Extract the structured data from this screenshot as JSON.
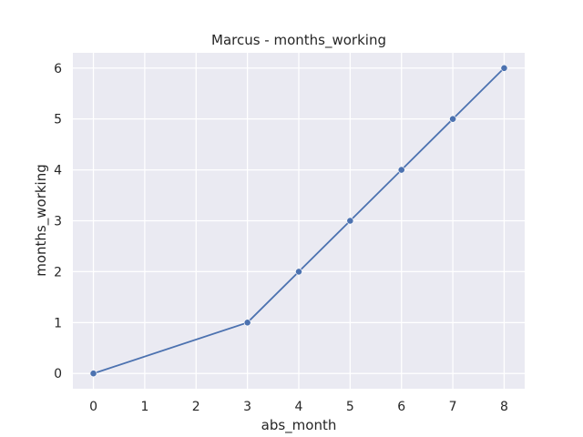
{
  "chart_data": {
    "type": "line",
    "title": "Marcus - months_working",
    "xlabel": "abs_month",
    "ylabel": "months_working",
    "x": [
      0,
      3,
      4,
      5,
      6,
      7,
      8
    ],
    "series": [
      {
        "values": [
          0,
          1,
          2,
          3,
          4,
          5,
          6
        ]
      }
    ],
    "xlim": [
      -0.4,
      8.4
    ],
    "ylim": [
      -0.3,
      6.3
    ],
    "xticks": [
      0,
      1,
      2,
      3,
      4,
      5,
      6,
      7,
      8
    ],
    "yticks": [
      0,
      1,
      2,
      3,
      4,
      5,
      6
    ],
    "grid": true,
    "markers": true,
    "colors": {
      "line": "#4c72b0",
      "plot_background": "#eaeaf2",
      "grid": "#ffffff"
    }
  }
}
